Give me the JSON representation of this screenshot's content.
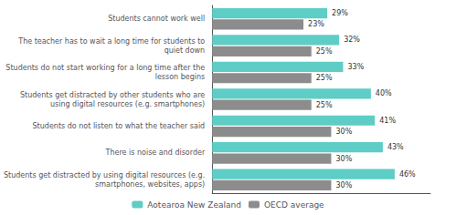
{
  "chart_data": {
    "type": "bar",
    "orientation": "horizontal",
    "categories": [
      "Students cannot work well",
      "The teacher has to wait a long time for students to\nquiet down",
      "Students do not start working for a long time after the\nlesson begins",
      "Students get distracted by other students who are\nusing digital resources (e.g. smartphones)",
      "Students do not listen to what the teacher said",
      "There is noise and disorder",
      "Students get distracted by using digital resources (e.g.\nsmartphones, websites, apps)"
    ],
    "series": [
      {
        "name": "Aotearoa New Zealand",
        "color": "#5ecdc5",
        "values": [
          29,
          32,
          33,
          40,
          41,
          43,
          46
        ],
        "value_labels": [
          "29%",
          "32%",
          "33%",
          "40%",
          "41%",
          "43%",
          "46%"
        ]
      },
      {
        "name": "OECD average",
        "color": "#8c8c8c",
        "values": [
          23,
          25,
          25,
          25,
          30,
          30,
          30
        ],
        "value_labels": [
          "23%",
          "25%",
          "25%",
          "25%",
          "30%",
          "30%",
          "30%"
        ]
      }
    ],
    "xlim": [
      0,
      55
    ],
    "xticks": [],
    "tick_labels": "y",
    "data_labels": true,
    "legend": "bottom",
    "grid": false
  }
}
